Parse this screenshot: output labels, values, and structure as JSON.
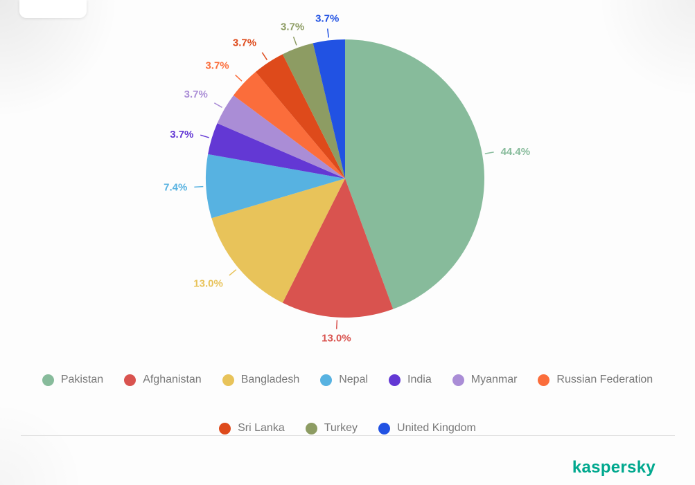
{
  "page": {
    "background": "#fdfdfd",
    "brand": "kaspersky",
    "brand_color": "#00a88e"
  },
  "chart_data": {
    "type": "pie",
    "start_angle_deg": 0,
    "direction": "clockwise",
    "legend_position": "bottom",
    "labels_outside": true,
    "slices": [
      {
        "label": "Pakistan",
        "value": 44.4,
        "display": "44.4%",
        "color": "#87bb9b"
      },
      {
        "label": "Afghanistan",
        "value": 13.0,
        "display": "13.0%",
        "color": "#d9534f"
      },
      {
        "label": "Bangladesh",
        "value": 13.0,
        "display": "13.0%",
        "color": "#e8c35a"
      },
      {
        "label": "Nepal",
        "value": 7.4,
        "display": "7.4%",
        "color": "#57b2e1"
      },
      {
        "label": "India",
        "value": 3.7,
        "display": "3.7%",
        "color": "#6338d4"
      },
      {
        "label": "Myanmar",
        "value": 3.7,
        "display": "3.7%",
        "color": "#aa8dd6"
      },
      {
        "label": "Russian Federation",
        "value": 3.7,
        "display": "3.7%",
        "color": "#fb6d3b"
      },
      {
        "label": "Sri Lanka",
        "value": 3.7,
        "display": "3.7%",
        "color": "#de4a1b"
      },
      {
        "label": "Turkey",
        "value": 3.7,
        "display": "3.7%",
        "color": "#8d9c63"
      },
      {
        "label": "United Kingdom",
        "value": 3.7,
        "display": "3.7%",
        "color": "#2152e3"
      }
    ]
  }
}
